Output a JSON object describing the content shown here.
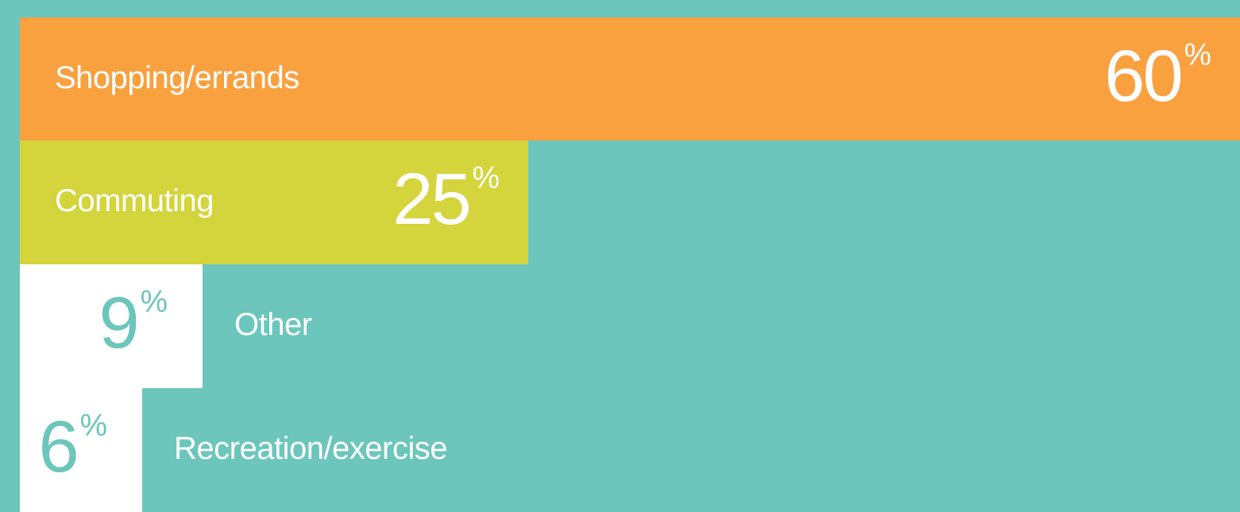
{
  "colors": {
    "background": "#6cc6bb",
    "shopping": "#f9a03f",
    "commuting": "#d4d43d",
    "other": "#ffffff",
    "recreation": "#ffffff",
    "light_text": "#ffffff",
    "teal_text": "#6cc6bb"
  },
  "chart_data": {
    "type": "bar",
    "orientation": "horizontal",
    "xlim": [
      0,
      60
    ],
    "categories": [
      "Shopping/errands",
      "Commuting",
      "Other",
      "Recreation/exercise"
    ],
    "values": [
      60,
      25,
      9,
      6
    ],
    "value_labels": [
      "60",
      "25",
      "9",
      "6"
    ],
    "unit": "%",
    "grid": false
  }
}
